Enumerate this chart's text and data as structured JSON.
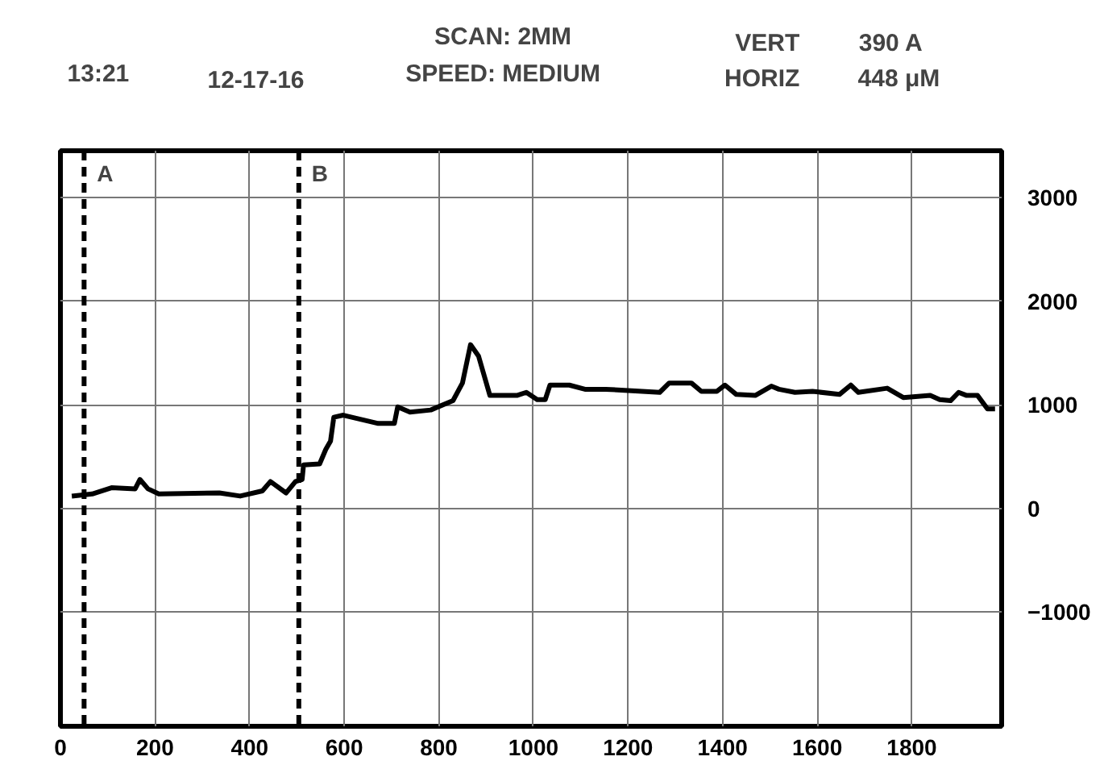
{
  "chart_data": {
    "type": "line",
    "x": [
      24,
      67,
      108,
      158,
      168,
      185,
      208,
      336,
      380,
      427,
      444,
      477,
      497,
      511,
      514,
      548,
      561,
      571,
      578,
      598,
      672,
      706,
      713,
      739,
      783,
      830,
      850,
      867,
      884,
      908,
      965,
      985,
      1008,
      1025,
      1035,
      1076,
      1109,
      1153,
      1267,
      1287,
      1334,
      1355,
      1388,
      1405,
      1429,
      1469,
      1503,
      1519,
      1553,
      1590,
      1647,
      1671,
      1687,
      1748,
      1782,
      1839,
      1859,
      1882,
      1899,
      1916,
      1939,
      1960,
      1976
    ],
    "series": [
      {
        "color": "#000000",
        "values": [
          120,
          140,
          200,
          190,
          280,
          190,
          140,
          150,
          120,
          170,
          260,
          150,
          260,
          280,
          420,
          430,
          570,
          650,
          880,
          900,
          820,
          820,
          980,
          930,
          950,
          1040,
          1210,
          1580,
          1470,
          1090,
          1090,
          1120,
          1050,
          1050,
          1190,
          1190,
          1150,
          1150,
          1120,
          1210,
          1210,
          1130,
          1130,
          1190,
          1100,
          1090,
          1180,
          1150,
          1120,
          1130,
          1100,
          1190,
          1120,
          1160,
          1070,
          1090,
          1050,
          1040,
          1120,
          1090,
          1090,
          960,
          960
        ]
      }
    ],
    "xlim": [
      0,
      1990
    ],
    "ylim": [
      -2100,
      3450
    ],
    "xticks": [
      0,
      200,
      400,
      600,
      800,
      1000,
      1200,
      1400,
      1600,
      1800
    ],
    "yticks": [
      -1000,
      0,
      1000,
      2000,
      3000
    ],
    "grid": true,
    "line_style": "solid",
    "marker": "none",
    "ref_lines": [
      {
        "axis": "x",
        "value": 50,
        "label": "A",
        "line_style": "dashed"
      },
      {
        "axis": "x",
        "value": 504,
        "label": "B",
        "line_style": "dashed"
      }
    ],
    "annotations": [
      "13:21",
      "12-17-16",
      "SCAN: 2MM",
      "SPEED: MEDIUM",
      "VERT",
      "390 A",
      "HORIZ",
      "448 μM"
    ]
  }
}
